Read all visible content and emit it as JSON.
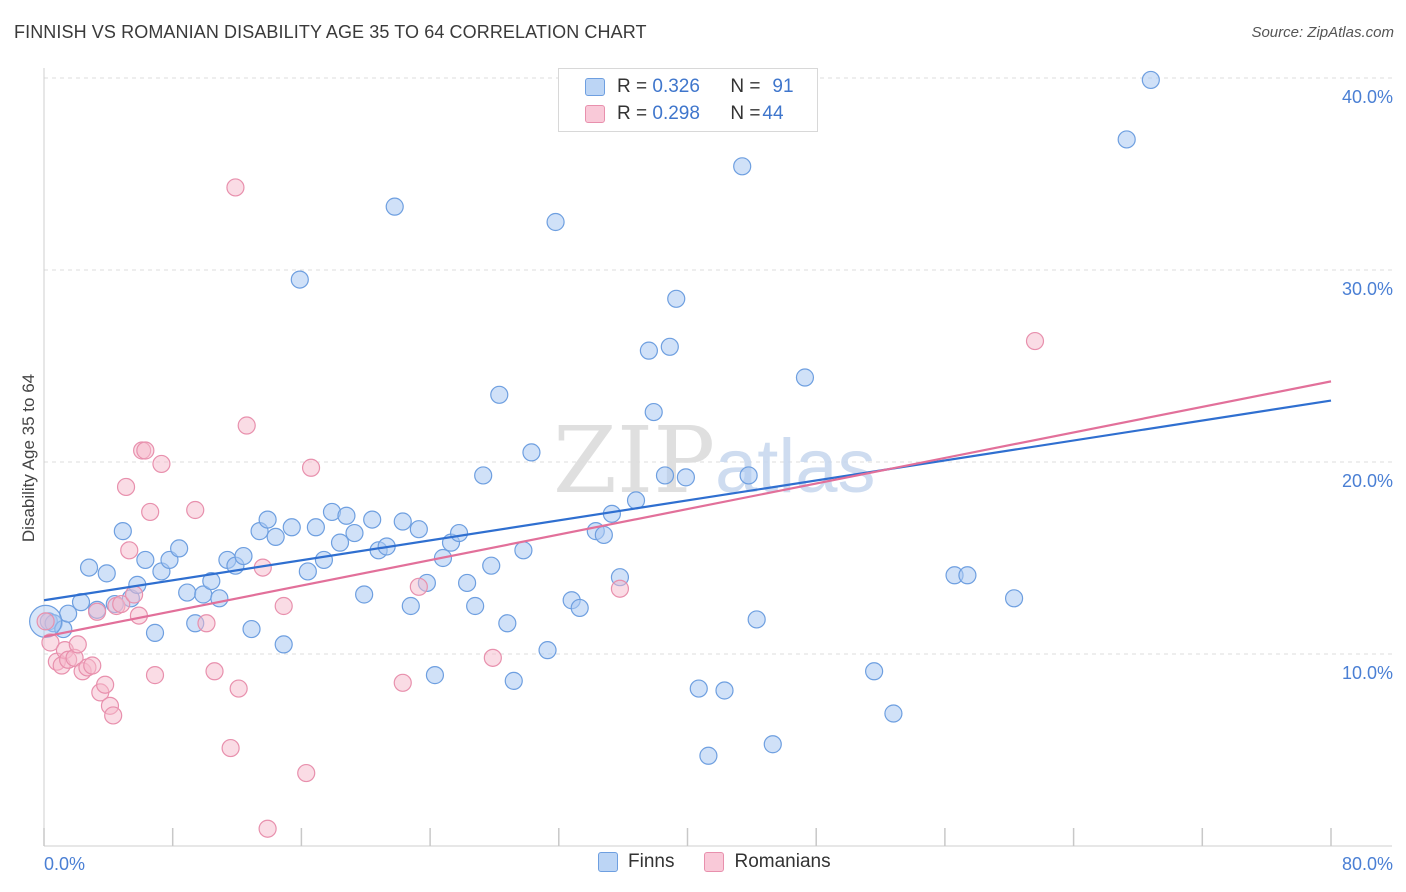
{
  "title": "FINNISH VS ROMANIAN DISABILITY AGE 35 TO 64 CORRELATION CHART",
  "source": "Source: ZipAtlas.com",
  "colors": {
    "finns_fill": "#a9c8f2",
    "finns_stroke": "#6e9fe0",
    "finns_line": "#2f6fd0",
    "romanians_fill": "#f6b9cc",
    "romanians_stroke": "#e890ad",
    "romanians_line": "#e2709a",
    "axis_label": "#4a7fd4",
    "grid": "#dddddd"
  },
  "legend": {
    "finns": {
      "r_label": "R = ",
      "r_value": "0.326",
      "n_label": "N = ",
      "n_value": "91"
    },
    "romanians": {
      "r_label": "R = ",
      "r_value": "0.298",
      "n_label": "N = ",
      "n_value": "44"
    }
  },
  "bottom_legend": {
    "finns": "Finns",
    "romanians": "Romanians"
  },
  "watermark": {
    "zip": "ZIP",
    "atlas": "atlas"
  },
  "chart_data": {
    "type": "scatter",
    "title": "FINNISH VS ROMANIAN DISABILITY AGE 35 TO 64 CORRELATION CHART",
    "xlabel": "",
    "ylabel": "Disability Age 35 to 64",
    "xlim": [
      0,
      80
    ],
    "ylim": [
      0,
      40
    ],
    "x_tick_labels": [
      "0.0%",
      "80.0%"
    ],
    "y_ticks": [
      10,
      20,
      30,
      40
    ],
    "y_tick_labels": [
      "10.0%",
      "20.0%",
      "30.0%",
      "40.0%"
    ],
    "grid": true,
    "series": [
      {
        "name": "Finns",
        "trend": {
          "x": [
            0,
            80
          ],
          "y": [
            12.8,
            23.2
          ]
        },
        "points": [
          [
            0.3,
            11.7
          ],
          [
            0.6,
            11.6
          ],
          [
            1.2,
            11.3
          ],
          [
            1.5,
            12.1
          ],
          [
            2.3,
            12.7
          ],
          [
            2.8,
            14.5
          ],
          [
            3.3,
            12.3
          ],
          [
            3.9,
            14.2
          ],
          [
            4.4,
            12.6
          ],
          [
            4.9,
            16.4
          ],
          [
            5.4,
            12.9
          ],
          [
            5.8,
            13.6
          ],
          [
            6.3,
            14.9
          ],
          [
            6.9,
            11.1
          ],
          [
            7.3,
            14.3
          ],
          [
            7.8,
            14.9
          ],
          [
            8.4,
            15.5
          ],
          [
            8.9,
            13.2
          ],
          [
            9.4,
            11.6
          ],
          [
            9.9,
            13.1
          ],
          [
            10.4,
            13.8
          ],
          [
            10.9,
            12.9
          ],
          [
            11.4,
            14.9
          ],
          [
            11.9,
            14.6
          ],
          [
            12.4,
            15.1
          ],
          [
            12.9,
            11.3
          ],
          [
            13.4,
            16.4
          ],
          [
            13.9,
            17.0
          ],
          [
            14.4,
            16.1
          ],
          [
            14.9,
            10.5
          ],
          [
            15.4,
            16.6
          ],
          [
            15.9,
            29.5
          ],
          [
            16.4,
            14.3
          ],
          [
            16.9,
            16.6
          ],
          [
            17.4,
            14.9
          ],
          [
            17.9,
            17.4
          ],
          [
            18.4,
            15.8
          ],
          [
            18.8,
            17.2
          ],
          [
            19.3,
            16.3
          ],
          [
            19.9,
            13.1
          ],
          [
            20.4,
            17.0
          ],
          [
            20.8,
            15.4
          ],
          [
            21.3,
            15.6
          ],
          [
            21.8,
            33.3
          ],
          [
            22.3,
            16.9
          ],
          [
            22.8,
            12.5
          ],
          [
            23.3,
            16.5
          ],
          [
            23.8,
            13.7
          ],
          [
            24.3,
            8.9
          ],
          [
            24.8,
            15.0
          ],
          [
            25.3,
            15.8
          ],
          [
            25.8,
            16.3
          ],
          [
            26.3,
            13.7
          ],
          [
            26.8,
            12.5
          ],
          [
            27.3,
            19.3
          ],
          [
            27.8,
            14.6
          ],
          [
            28.3,
            23.5
          ],
          [
            28.8,
            11.6
          ],
          [
            29.2,
            8.6
          ],
          [
            29.8,
            15.4
          ],
          [
            30.3,
            20.5
          ],
          [
            31.3,
            10.2
          ],
          [
            31.8,
            32.5
          ],
          [
            32.8,
            12.8
          ],
          [
            33.3,
            12.4
          ],
          [
            34.3,
            16.4
          ],
          [
            34.8,
            16.2
          ],
          [
            35.3,
            17.3
          ],
          [
            35.8,
            14.0
          ],
          [
            36.8,
            18.0
          ],
          [
            37.6,
            25.8
          ],
          [
            37.9,
            22.6
          ],
          [
            38.6,
            19.3
          ],
          [
            38.9,
            26.0
          ],
          [
            39.3,
            28.5
          ],
          [
            39.9,
            19.2
          ],
          [
            40.7,
            8.2
          ],
          [
            41.3,
            4.7
          ],
          [
            42.3,
            8.1
          ],
          [
            43.4,
            35.4
          ],
          [
            43.8,
            19.3
          ],
          [
            44.3,
            11.8
          ],
          [
            45.3,
            5.3
          ],
          [
            47.3,
            24.4
          ],
          [
            51.6,
            9.1
          ],
          [
            52.8,
            6.9
          ],
          [
            56.6,
            14.1
          ],
          [
            57.4,
            14.1
          ],
          [
            60.3,
            12.9
          ],
          [
            67.3,
            36.8
          ],
          [
            68.8,
            39.9
          ]
        ]
      },
      {
        "name": "Romanians",
        "trend": {
          "x": [
            0,
            80
          ],
          "y": [
            10.9,
            24.2
          ]
        },
        "points": [
          [
            0.1,
            11.7
          ],
          [
            0.4,
            10.6
          ],
          [
            0.8,
            9.6
          ],
          [
            1.1,
            9.4
          ],
          [
            1.3,
            10.2
          ],
          [
            1.5,
            9.7
          ],
          [
            1.9,
            9.8
          ],
          [
            2.1,
            10.5
          ],
          [
            2.4,
            9.1
          ],
          [
            2.7,
            9.3
          ],
          [
            3.0,
            9.4
          ],
          [
            3.3,
            12.2
          ],
          [
            3.5,
            8.0
          ],
          [
            3.8,
            8.4
          ],
          [
            4.1,
            7.3
          ],
          [
            4.3,
            6.8
          ],
          [
            4.5,
            12.5
          ],
          [
            4.8,
            12.6
          ],
          [
            5.1,
            18.7
          ],
          [
            5.3,
            15.4
          ],
          [
            5.6,
            13.1
          ],
          [
            5.9,
            12.0
          ],
          [
            6.1,
            20.6
          ],
          [
            6.3,
            20.6
          ],
          [
            6.6,
            17.4
          ],
          [
            6.9,
            8.9
          ],
          [
            7.3,
            19.9
          ],
          [
            9.4,
            17.5
          ],
          [
            10.1,
            11.6
          ],
          [
            10.6,
            9.1
          ],
          [
            11.6,
            5.1
          ],
          [
            11.9,
            34.3
          ],
          [
            12.1,
            8.2
          ],
          [
            12.6,
            21.9
          ],
          [
            13.6,
            14.5
          ],
          [
            13.9,
            0.9
          ],
          [
            14.9,
            12.5
          ],
          [
            16.3,
            3.8
          ],
          [
            16.6,
            19.7
          ],
          [
            22.3,
            8.5
          ],
          [
            23.3,
            13.5
          ],
          [
            27.9,
            9.8
          ],
          [
            35.8,
            13.4
          ],
          [
            61.6,
            26.3
          ]
        ]
      }
    ]
  }
}
